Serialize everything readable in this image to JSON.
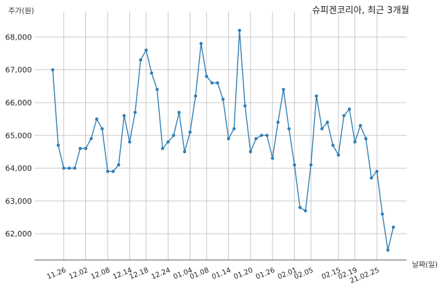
{
  "chart_data": {
    "type": "line",
    "title": "슈피겐코리아, 최근 3개월",
    "ylabel": "주가(원)",
    "xlabel": "날짜(일)",
    "ylim": [
      61200,
      68600
    ],
    "yticks": [
      62000,
      63000,
      64000,
      65000,
      66000,
      67000,
      68000
    ],
    "ytick_labels": [
      "62,000",
      "63,000",
      "64,000",
      "65,000",
      "66,000",
      "67,000",
      "68,000"
    ],
    "xtick_labels": [
      "11.26",
      "12.02",
      "12.08",
      "12.14",
      "12.18",
      "12.24",
      "01.04",
      "01.08",
      "01.14",
      "01.20",
      "01.26",
      "02.01",
      "02.05",
      "02.15",
      "02.19",
      "21.02.25"
    ],
    "xtick_index": [
      2,
      6,
      10,
      14,
      17,
      21,
      25,
      28,
      32,
      36,
      40,
      44,
      47,
      52,
      55,
      59
    ],
    "grid": true,
    "legend": "none",
    "series_color": "#2e7eb5",
    "series": [
      {
        "values": [
          67000,
          64700,
          64000,
          64000,
          64000,
          64600,
          64600,
          64900,
          65500,
          65200,
          63900,
          63900,
          64100,
          65600,
          64800,
          65700,
          67300,
          67600,
          66900,
          66400,
          64600,
          64800,
          65000,
          65700,
          64500,
          65100,
          66200,
          67800,
          66800,
          66600,
          66600,
          66100,
          64900,
          65200,
          68200,
          65900,
          64500,
          64900,
          65000,
          65000,
          64300,
          65400,
          66400,
          65200,
          64100,
          62800,
          62700,
          64100,
          66200,
          65200,
          65400,
          64700,
          64400,
          65600,
          65800,
          64800,
          65300,
          64900,
          63700,
          63900,
          62600,
          61500,
          62200
        ]
      }
    ]
  }
}
